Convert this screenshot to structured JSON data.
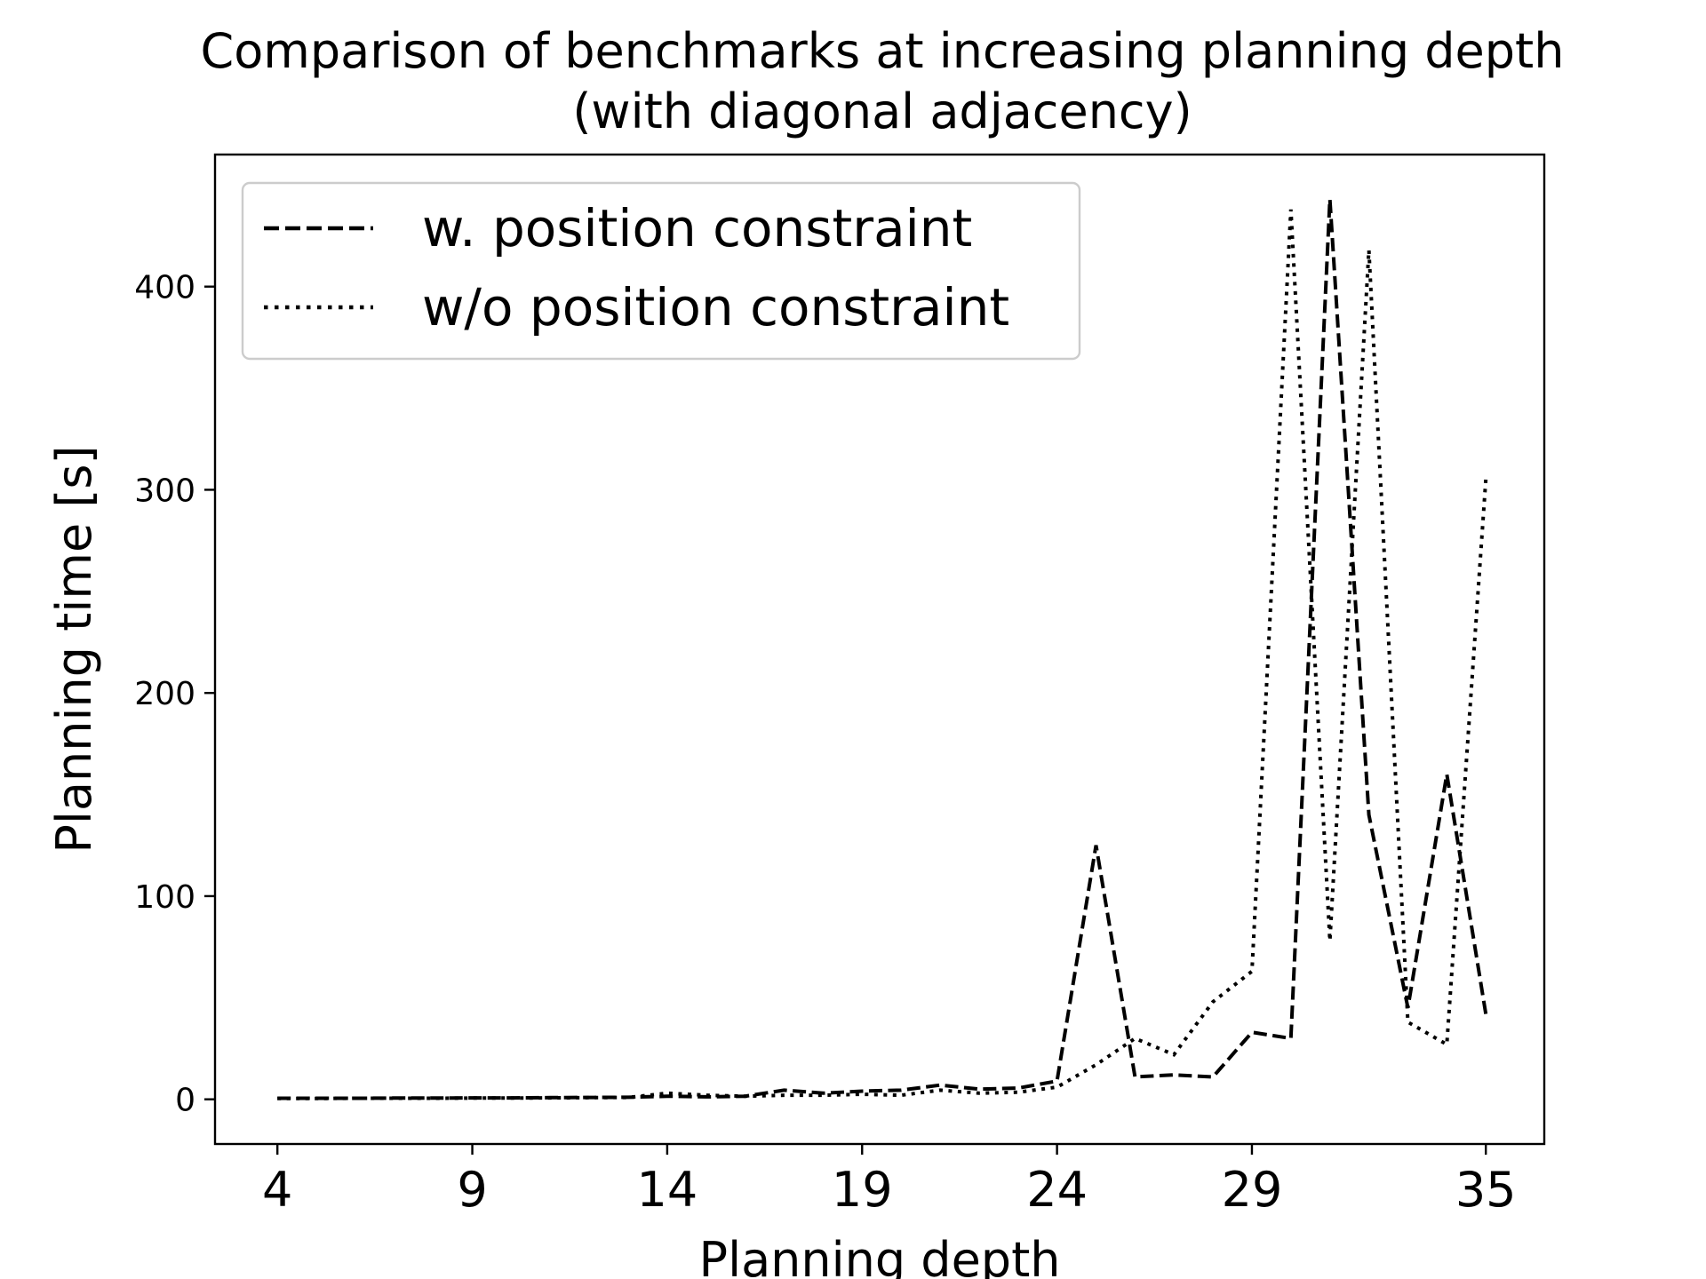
{
  "chart_data": {
    "type": "line",
    "title": [
      "Comparison of benchmarks at increasing planning depth",
      "(with diagonal adjacency)"
    ],
    "xlabel": "Planning depth",
    "ylabel": "Planning time [s]",
    "xlim": [
      2.4,
      36.5
    ],
    "ylim": [
      -22,
      465
    ],
    "xticks": [
      4,
      9,
      14,
      19,
      24,
      29,
      35
    ],
    "yticks": [
      0,
      100,
      200,
      300,
      400
    ],
    "grid": false,
    "legend_position": "top-left",
    "x": [
      4,
      5,
      6,
      7,
      8,
      9,
      10,
      11,
      12,
      13,
      14,
      15,
      16,
      17,
      18,
      19,
      20,
      21,
      22,
      23,
      24,
      25,
      26,
      27,
      28,
      29,
      30,
      31,
      32,
      33,
      34,
      35
    ],
    "series": [
      {
        "name": "w. position constraint",
        "style": "dashed",
        "color": "#000000",
        "values": [
          0.5,
          0.5,
          0.5,
          0.6,
          0.6,
          0.7,
          0.7,
          0.8,
          0.9,
          1.0,
          1.5,
          1.2,
          1.5,
          4.5,
          3.0,
          4.0,
          4.5,
          7.0,
          5.0,
          5.5,
          9.0,
          125,
          11,
          12,
          11,
          33,
          30,
          443,
          140,
          45,
          160,
          42
        ]
      },
      {
        "name": "w/o position constraint",
        "style": "dotted",
        "color": "#000000",
        "values": [
          0.4,
          0.4,
          0.5,
          0.5,
          0.5,
          0.6,
          0.6,
          0.7,
          0.8,
          0.9,
          3.0,
          2.0,
          1.5,
          2.0,
          2.0,
          2.5,
          2.0,
          4.5,
          3.0,
          3.5,
          6.0,
          17,
          30,
          22,
          48,
          63,
          438,
          78,
          418,
          38,
          27,
          305
        ]
      }
    ]
  }
}
